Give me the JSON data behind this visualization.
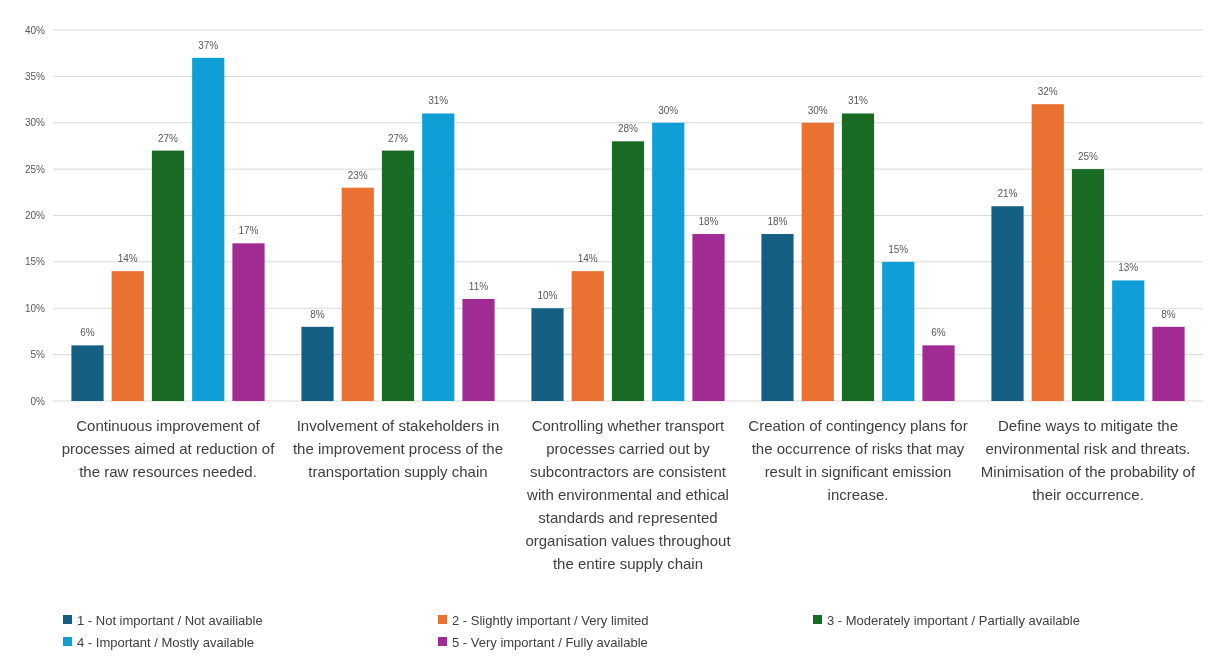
{
  "chart_data": {
    "type": "bar",
    "categories": [
      "Continuous improvement of processes aimed at reduction of the raw resources needed.",
      "Involvement of stakeholders in the improvement process of the transportation supply chain",
      "Controlling whether transport processes carried out by subcontractors are consistent with environmental and ethical standards and represented organisation values throughout the entire supply chain",
      "Creation of contingency plans for the occurrence of risks that may result in significant emission increase.",
      "Define ways to mitigate the environmental risk and threats. Minimisation of the probability of their occurrence."
    ],
    "series": [
      {
        "name": "1 - Not important / Not availiable",
        "color": "#156082",
        "values": [
          6,
          8,
          10,
          18,
          21
        ],
        "value_labels": [
          "6%",
          "8%",
          "10%",
          "18%",
          "21%"
        ]
      },
      {
        "name": "2 - Slightly important / Very limited",
        "color": "#e97132",
        "values": [
          14,
          23,
          14,
          30,
          32
        ],
        "value_labels": [
          "14%",
          "23%",
          "14%",
          "30%",
          "32%"
        ]
      },
      {
        "name": "3 - Moderately important / Partially available",
        "color": "#196b24",
        "values": [
          27,
          27,
          28,
          31,
          25
        ],
        "value_labels": [
          "27%",
          "27%",
          "28%",
          "31%",
          "25%"
        ]
      },
      {
        "name": "4 - Important / Mostly available",
        "color": "#0f9ed5",
        "values": [
          37,
          31,
          30,
          15,
          13
        ],
        "value_labels": [
          "37%",
          "31%",
          "30%",
          "15%",
          "13%"
        ]
      },
      {
        "name": "5 - Very important / Fully available",
        "color": "#a02b93",
        "values": [
          17,
          11,
          18,
          6,
          8
        ],
        "value_labels": [
          "17%",
          "11%",
          "18%",
          "6%",
          "8%"
        ]
      }
    ],
    "ylim": [
      0,
      40
    ],
    "yticks": [
      {
        "value": 0,
        "label": "0%"
      },
      {
        "value": 5,
        "label": "5%"
      },
      {
        "value": 10,
        "label": "10%"
      },
      {
        "value": 15,
        "label": "15%"
      },
      {
        "value": 20,
        "label": "20%"
      },
      {
        "value": 25,
        "label": "25%"
      },
      {
        "value": 30,
        "label": "30%"
      },
      {
        "value": 35,
        "label": "35%"
      },
      {
        "value": 40,
        "label": "40%"
      }
    ],
    "grid": "y",
    "legend": "bottom"
  }
}
